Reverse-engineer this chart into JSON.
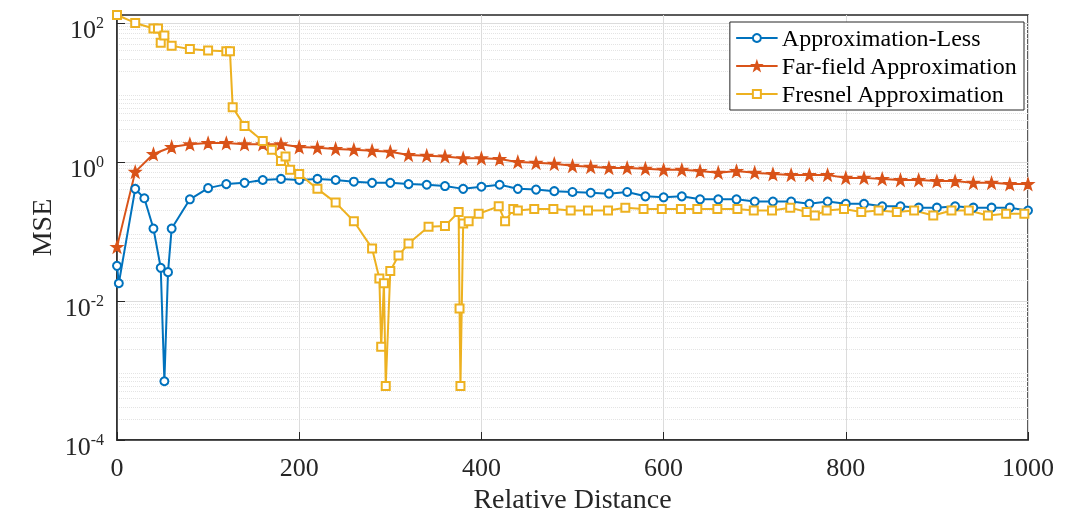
{
  "chart_data": {
    "type": "line",
    "xlabel": "Relative Distance",
    "ylabel": "MSE",
    "log": "y",
    "grid": true,
    "legend": "top right",
    "line_style": "solid",
    "xlim": [
      0,
      1000
    ],
    "xticks": [
      0,
      200,
      400,
      600,
      800,
      1000
    ],
    "ylim": [
      0.0001,
      130
    ],
    "yticks": [
      {
        "value": 0.0001,
        "label": "10$^{-4}$"
      },
      {
        "value": 0.01,
        "label": "10$^{-2}$"
      },
      {
        "value": 1,
        "label": "10$^{0}$"
      },
      {
        "value": 100,
        "label": "10$^{2}$"
      }
    ],
    "series": [
      {
        "name": "Approximation-Less",
        "color": "#0072bd",
        "marker": "circle",
        "x": [
          0,
          2,
          20,
          30,
          40,
          48,
          52,
          56,
          60,
          80,
          100,
          120,
          140,
          160,
          180,
          200,
          220,
          240,
          260,
          280,
          300,
          320,
          340,
          360,
          380,
          400,
          420,
          440,
          460,
          480,
          500,
          520,
          540,
          560,
          580,
          600,
          620,
          640,
          660,
          680,
          700,
          720,
          740,
          760,
          780,
          800,
          820,
          840,
          860,
          880,
          900,
          920,
          940,
          960,
          980,
          1000
        ],
        "values": [
          0.032,
          0.018,
          0.41,
          0.3,
          0.11,
          0.03,
          0.0007,
          0.026,
          0.11,
          0.29,
          0.42,
          0.48,
          0.5,
          0.55,
          0.57,
          0.55,
          0.57,
          0.55,
          0.52,
          0.5,
          0.5,
          0.48,
          0.47,
          0.45,
          0.41,
          0.44,
          0.47,
          0.41,
          0.4,
          0.38,
          0.37,
          0.36,
          0.35,
          0.37,
          0.32,
          0.31,
          0.32,
          0.29,
          0.29,
          0.29,
          0.27,
          0.27,
          0.27,
          0.25,
          0.27,
          0.25,
          0.25,
          0.23,
          0.23,
          0.22,
          0.22,
          0.23,
          0.22,
          0.22,
          0.22,
          0.2
        ]
      },
      {
        "name": "Far-field Approximation",
        "color": "#d95319",
        "marker": "star",
        "x": [
          0,
          20,
          40,
          60,
          80,
          100,
          120,
          140,
          160,
          180,
          200,
          220,
          240,
          260,
          280,
          300,
          320,
          340,
          360,
          380,
          400,
          420,
          440,
          460,
          480,
          500,
          520,
          540,
          560,
          580,
          600,
          620,
          640,
          660,
          680,
          700,
          720,
          740,
          760,
          780,
          800,
          820,
          840,
          860,
          880,
          900,
          920,
          940,
          960,
          980,
          1000
        ],
        "values": [
          0.06,
          0.72,
          1.3,
          1.64,
          1.8,
          1.87,
          1.87,
          1.8,
          1.8,
          1.8,
          1.64,
          1.6,
          1.54,
          1.5,
          1.45,
          1.4,
          1.26,
          1.23,
          1.2,
          1.13,
          1.13,
          1.1,
          1.0,
          0.97,
          0.94,
          0.88,
          0.85,
          0.82,
          0.82,
          0.8,
          0.77,
          0.77,
          0.74,
          0.7,
          0.74,
          0.7,
          0.67,
          0.65,
          0.65,
          0.65,
          0.59,
          0.59,
          0.57,
          0.55,
          0.55,
          0.53,
          0.53,
          0.5,
          0.5,
          0.48,
          0.48
        ]
      },
      {
        "name": "Fresnel Approximation",
        "color": "#edb120",
        "marker": "square",
        "x": [
          0,
          20,
          40,
          45,
          48,
          52,
          60,
          80,
          100,
          120,
          124,
          127,
          140,
          160,
          170,
          180,
          185,
          190,
          200,
          220,
          240,
          260,
          280,
          288,
          290,
          293,
          295,
          300,
          309,
          320,
          342,
          360,
          375,
          376,
          377,
          380,
          386,
          397,
          419,
          426,
          435,
          440,
          458,
          479,
          498,
          517,
          539,
          558,
          578,
          598,
          619,
          637,
          659,
          681,
          699,
          719,
          739,
          757,
          766,
          779,
          798,
          817,
          836,
          856,
          875,
          896,
          916,
          935,
          956,
          976,
          996
        ],
        "values": [
          130,
          100,
          83,
          83,
          52,
          66,
          47,
          42,
          40,
          39,
          39,
          6.1,
          3.3,
          2.0,
          1.5,
          1.03,
          1.2,
          0.77,
          0.67,
          0.41,
          0.26,
          0.14,
          0.057,
          0.021,
          0.0022,
          0.018,
          0.0006,
          0.027,
          0.045,
          0.067,
          0.117,
          0.12,
          0.19,
          0.0078,
          0.0006,
          0.13,
          0.14,
          0.18,
          0.23,
          0.14,
          0.21,
          0.2,
          0.21,
          0.21,
          0.2,
          0.2,
          0.2,
          0.22,
          0.21,
          0.21,
          0.21,
          0.21,
          0.21,
          0.21,
          0.2,
          0.2,
          0.22,
          0.19,
          0.17,
          0.2,
          0.21,
          0.19,
          0.2,
          0.19,
          0.2,
          0.17,
          0.2,
          0.2,
          0.17,
          0.18,
          0.18
        ]
      }
    ]
  }
}
